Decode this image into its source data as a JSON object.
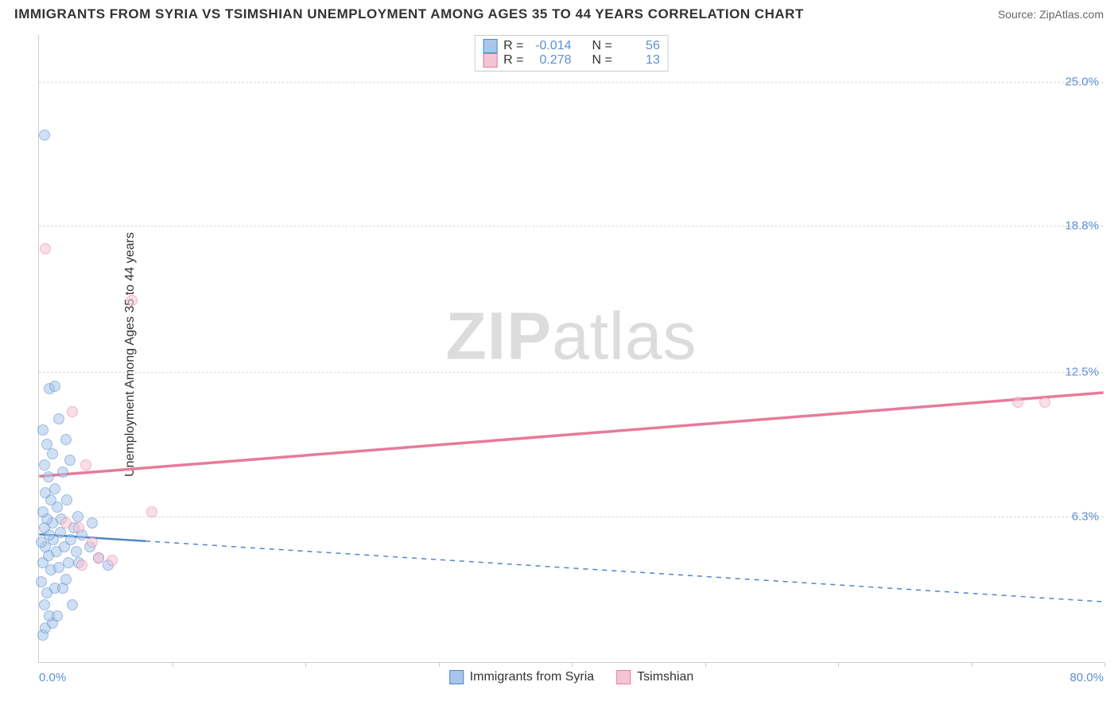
{
  "header": {
    "title": "IMMIGRANTS FROM SYRIA VS TSIMSHIAN UNEMPLOYMENT AMONG AGES 35 TO 44 YEARS CORRELATION CHART",
    "source": "Source: ZipAtlas.com"
  },
  "chart": {
    "type": "scatter",
    "watermark_a": "ZIP",
    "watermark_b": "atlas",
    "ylabel": "Unemployment Among Ages 35 to 44 years",
    "xlim": [
      0,
      80
    ],
    "ylim": [
      0,
      27
    ],
    "ytick_labels": [
      "6.3%",
      "12.5%",
      "18.8%",
      "25.0%"
    ],
    "ytick_values": [
      6.3,
      12.5,
      18.8,
      25.0
    ],
    "xtick_values": [
      10,
      20,
      30,
      40,
      50,
      60,
      70,
      80
    ],
    "xaxis_min_label": "0.0%",
    "xaxis_max_label": "80.0%",
    "background_color": "#ffffff",
    "grid_color": "#d8d8d8",
    "axis_color": "#cccccc",
    "tick_label_color": "#5b8fd6",
    "point_radius": 7,
    "point_opacity": 0.55,
    "series": [
      {
        "name": "Immigrants from Syria",
        "fill_color": "#a8c6ec",
        "stroke_color": "#4f86c6",
        "R": "-0.014",
        "N": "56",
        "trend": {
          "y_at_x0": 5.5,
          "y_at_xmax": 2.6,
          "dash": "6,6",
          "width": 1.5,
          "solid_until_x": 8
        },
        "points": [
          [
            0.3,
            1.2
          ],
          [
            0.5,
            1.5
          ],
          [
            1.0,
            1.7
          ],
          [
            0.8,
            2.0
          ],
          [
            1.4,
            2.0
          ],
          [
            0.4,
            2.5
          ],
          [
            2.5,
            2.5
          ],
          [
            0.6,
            3.0
          ],
          [
            1.2,
            3.2
          ],
          [
            1.8,
            3.2
          ],
          [
            0.2,
            3.5
          ],
          [
            2.0,
            3.6
          ],
          [
            0.9,
            4.0
          ],
          [
            1.5,
            4.1
          ],
          [
            0.3,
            4.3
          ],
          [
            2.2,
            4.3
          ],
          [
            3.0,
            4.3
          ],
          [
            0.7,
            4.6
          ],
          [
            1.3,
            4.8
          ],
          [
            2.8,
            4.8
          ],
          [
            0.5,
            5.0
          ],
          [
            1.9,
            5.0
          ],
          [
            0.2,
            5.2
          ],
          [
            1.1,
            5.3
          ],
          [
            2.4,
            5.3
          ],
          [
            0.8,
            5.5
          ],
          [
            3.2,
            5.5
          ],
          [
            1.6,
            5.6
          ],
          [
            0.4,
            5.8
          ],
          [
            2.6,
            5.8
          ],
          [
            1.0,
            6.0
          ],
          [
            0.6,
            6.2
          ],
          [
            1.7,
            6.2
          ],
          [
            2.9,
            6.3
          ],
          [
            0.3,
            6.5
          ],
          [
            1.4,
            6.7
          ],
          [
            0.9,
            7.0
          ],
          [
            2.1,
            7.0
          ],
          [
            0.5,
            7.3
          ],
          [
            1.2,
            7.5
          ],
          [
            0.7,
            8.0
          ],
          [
            1.8,
            8.2
          ],
          [
            0.4,
            8.5
          ],
          [
            2.3,
            8.7
          ],
          [
            1.0,
            9.0
          ],
          [
            0.6,
            9.4
          ],
          [
            2.0,
            9.6
          ],
          [
            0.3,
            10.0
          ],
          [
            1.5,
            10.5
          ],
          [
            0.8,
            11.8
          ],
          [
            1.2,
            11.9
          ],
          [
            0.4,
            22.7
          ],
          [
            5.2,
            4.2
          ],
          [
            4.5,
            4.5
          ],
          [
            3.8,
            5.0
          ],
          [
            4.0,
            6.0
          ]
        ]
      },
      {
        "name": "Tsimshian",
        "fill_color": "#f5c4d2",
        "stroke_color": "#e77a9a",
        "R": "0.278",
        "N": "13",
        "trend": {
          "y_at_x0": 8.0,
          "y_at_xmax": 11.6,
          "dash": "none",
          "width": 2.5,
          "solid_until_x": 80
        },
        "points": [
          [
            0.5,
            17.8
          ],
          [
            7.0,
            15.6
          ],
          [
            2.5,
            10.8
          ],
          [
            3.5,
            8.5
          ],
          [
            8.5,
            6.5
          ],
          [
            3.0,
            5.8
          ],
          [
            4.5,
            4.5
          ],
          [
            5.5,
            4.4
          ],
          [
            3.2,
            4.2
          ],
          [
            2.0,
            6.0
          ],
          [
            4.0,
            5.2
          ],
          [
            73.5,
            11.2
          ],
          [
            75.5,
            11.2
          ]
        ]
      }
    ]
  },
  "legend": {
    "r_label": "R =",
    "n_label": "N ="
  }
}
